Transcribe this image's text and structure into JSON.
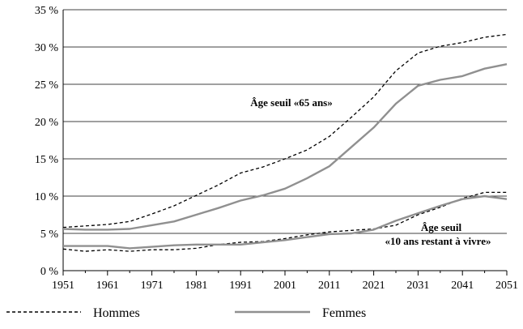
{
  "chart_data": {
    "type": "line",
    "title": "",
    "xlabel": "",
    "ylabel": "",
    "x": [
      1951,
      1956,
      1961,
      1966,
      1971,
      1976,
      1981,
      1986,
      1991,
      1996,
      2001,
      2006,
      2011,
      2016,
      2021,
      2026,
      2031,
      2036,
      2041,
      2046,
      2051
    ],
    "xlim": [
      1951,
      2051
    ],
    "ylim": [
      0,
      35
    ],
    "x_ticks": [
      1951,
      1961,
      1971,
      1981,
      1991,
      2001,
      2011,
      2021,
      2031,
      2041,
      2051
    ],
    "x_tick_labels": [
      "1951",
      "1961",
      "1971",
      "1981",
      "1991",
      "2001",
      "2011",
      "2021",
      "2031",
      "2041",
      "2051"
    ],
    "y_ticks": [
      0,
      5,
      10,
      15,
      20,
      25,
      30,
      35
    ],
    "y_tick_labels": [
      "0 %",
      "5 %",
      "10 %",
      "15 %",
      "20 %",
      "25 %",
      "30 %",
      "35 %"
    ],
    "grid": "horizontal",
    "legend_position": "bottom",
    "series": [
      {
        "name": "Hommes",
        "group": "age-65",
        "style": "dashed",
        "color": "#000000",
        "values": [
          5.8,
          6.0,
          6.2,
          6.6,
          7.6,
          8.7,
          10.1,
          11.5,
          13.1,
          13.9,
          15.0,
          16.2,
          18.0,
          20.6,
          23.3,
          26.8,
          29.2,
          30.1,
          30.6,
          31.3,
          31.7
        ]
      },
      {
        "name": "Femmes",
        "group": "age-65",
        "style": "solid",
        "color": "#909090",
        "values": [
          5.6,
          5.5,
          5.5,
          5.6,
          6.1,
          6.6,
          7.5,
          8.4,
          9.4,
          10.1,
          11.0,
          12.4,
          14.0,
          16.6,
          19.2,
          22.4,
          24.8,
          25.6,
          26.1,
          27.1,
          27.7
        ]
      },
      {
        "name": "Hommes",
        "group": "age-10",
        "style": "dashed",
        "color": "#000000",
        "values": [
          2.9,
          2.6,
          2.8,
          2.6,
          2.8,
          2.8,
          3.0,
          3.5,
          3.8,
          3.9,
          4.3,
          4.8,
          5.2,
          5.4,
          5.6,
          6.1,
          7.5,
          8.5,
          9.7,
          10.5,
          10.5
        ]
      },
      {
        "name": "Femmes",
        "group": "age-10",
        "style": "solid",
        "color": "#909090",
        "values": [
          3.3,
          3.3,
          3.3,
          3.0,
          3.2,
          3.4,
          3.5,
          3.5,
          3.5,
          3.8,
          4.1,
          4.5,
          4.9,
          5.0,
          5.5,
          6.7,
          7.7,
          8.7,
          9.6,
          10.0,
          9.6
        ]
      }
    ],
    "annotations": [
      {
        "text": "Âge seuil «65 ans»"
      },
      {
        "text": "Âge seuil"
      },
      {
        "text": "«10 ans restant à vivre»"
      }
    ],
    "legend": [
      {
        "label": "Hommes",
        "style": "dashed",
        "color": "#000000"
      },
      {
        "label": "Femmes",
        "style": "solid",
        "color": "#909090"
      }
    ]
  }
}
